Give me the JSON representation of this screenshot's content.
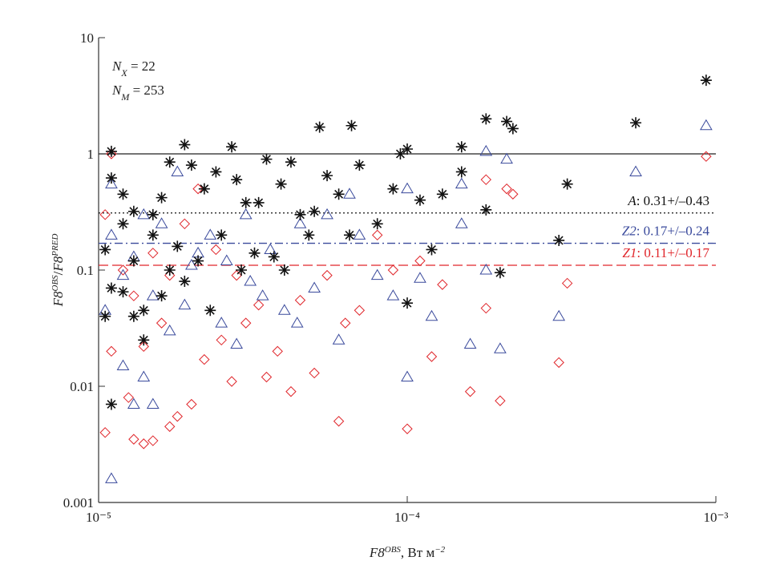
{
  "chart_data": {
    "type": "scatter",
    "xlog": true,
    "ylog": true,
    "xlim": [
      1e-05,
      0.001
    ],
    "ylim": [
      0.001,
      10
    ],
    "xticks": [
      {
        "value": 1e-05,
        "label": "10⁻⁵"
      },
      {
        "value": 0.0001,
        "label": "10⁻⁴"
      },
      {
        "value": 0.001,
        "label": "10⁻³"
      }
    ],
    "yticks": [
      0.001,
      0.01,
      0.1,
      1,
      10
    ],
    "x_label": [
      {
        "text": "F8",
        "style": "italic"
      },
      {
        "text": "OBS",
        "style": "sup"
      },
      {
        "text": ", Вт м"
      },
      {
        "text": "−2",
        "style": "sup"
      }
    ],
    "y_label": [
      {
        "text": "F8",
        "style": "italic"
      },
      {
        "text": "OBS",
        "style": "sup"
      },
      {
        "text": "/"
      },
      {
        "text": "F8",
        "style": "italic"
      },
      {
        "text": "PRED",
        "style": "sup"
      }
    ],
    "annotations": [
      [
        {
          "text": "N",
          "style": "italic"
        },
        {
          "text": "X",
          "style": "sub"
        },
        {
          "text": " = 22"
        }
      ],
      [
        {
          "text": "N",
          "style": "italic"
        },
        {
          "text": "M",
          "style": "sub"
        },
        {
          "text": " = 253"
        }
      ]
    ],
    "reference_line": 1,
    "series": [
      {
        "name": "A",
        "label": ": 0.31+/–0.43",
        "mean": 0.31,
        "color": "#111111",
        "marker": "asterisk",
        "line_style": "dotted",
        "x": [
          1.1e-05,
          1.1e-05,
          1.2e-05,
          1.3e-05,
          1.5e-05,
          1.6e-05,
          1.7e-05,
          1.9e-05,
          2e-05,
          2.2e-05,
          2.4e-05,
          2.7e-05,
          2.8e-05,
          3e-05,
          3.3e-05,
          3.5e-05,
          3.9e-05,
          4.2e-05,
          4.5e-05,
          5.2e-05,
          5.5e-05,
          6e-05,
          6.6e-05,
          7e-05,
          8e-05,
          9e-05,
          9.5e-05,
          0.0001,
          0.00011,
          0.00012,
          0.00013,
          0.00015,
          0.00015,
          0.00018,
          0.00018,
          0.0002,
          0.00021,
          0.00022,
          0.00031,
          0.00033,
          0.00055,
          0.00093,
          1.05e-05,
          1.1e-05,
          1.2e-05,
          1.3e-05,
          1.4e-05,
          1.5e-05,
          1.6e-05,
          1.7e-05,
          1.8e-05,
          1.9e-05,
          2.1e-05,
          2.3e-05,
          2.5e-05,
          2.9e-05,
          3.2e-05,
          3.7e-05,
          4e-05,
          4.8e-05,
          5e-05,
          6.5e-05,
          0.0001,
          1.4e-05,
          1.1e-05,
          1.3e-05,
          1.05e-05,
          1.2e-05
        ],
        "values": [
          1.05,
          0.62,
          0.45,
          0.32,
          0.3,
          0.42,
          0.85,
          1.2,
          0.8,
          0.5,
          0.7,
          1.15,
          0.6,
          0.38,
          0.38,
          0.9,
          0.55,
          0.85,
          0.3,
          1.7,
          0.65,
          0.45,
          1.75,
          0.8,
          0.25,
          0.5,
          1.0,
          1.1,
          0.4,
          0.15,
          0.45,
          1.15,
          0.7,
          2.0,
          0.33,
          0.095,
          1.9,
          1.65,
          0.18,
          0.55,
          1.85,
          4.3,
          0.15,
          0.07,
          0.065,
          0.12,
          0.045,
          0.2,
          0.06,
          0.1,
          0.16,
          0.08,
          0.12,
          0.045,
          0.2,
          0.1,
          0.14,
          0.13,
          0.1,
          0.2,
          0.32,
          0.2,
          0.052,
          0.025,
          0.007,
          0.04,
          0.04,
          0.25
        ]
      },
      {
        "name": "Z2",
        "label": ": 0.17+/–0.24",
        "mean": 0.17,
        "color": "#3a4a9c",
        "marker": "triangle",
        "line_style": "dashdot",
        "x": [
          1.1e-05,
          1.3e-05,
          1.2e-05,
          1.4e-05,
          1.5e-05,
          1.7e-05,
          1.9e-05,
          2e-05,
          2.3e-05,
          2.5e-05,
          2.8e-05,
          3.1e-05,
          3.4e-05,
          3.6e-05,
          4e-05,
          4.4e-05,
          5e-05,
          5.5e-05,
          6e-05,
          6.5e-05,
          7e-05,
          8e-05,
          9e-05,
          0.0001,
          0.0001,
          0.00011,
          0.00012,
          0.00015,
          0.00015,
          0.00016,
          0.00018,
          0.00018,
          0.0002,
          0.00021,
          0.00031,
          0.00055,
          0.00093,
          1.1e-05,
          1.2e-05,
          1.3e-05,
          1.5e-05,
          1.6e-05,
          1.8e-05,
          2.1e-05,
          1.05e-05,
          1.4e-05,
          2.6e-05,
          3e-05,
          4.5e-05,
          1.1e-05
        ],
        "values": [
          0.0016,
          0.007,
          0.015,
          0.012,
          0.007,
          0.03,
          0.05,
          0.11,
          0.2,
          0.035,
          0.023,
          0.08,
          0.06,
          0.15,
          0.045,
          0.035,
          0.07,
          0.3,
          0.025,
          0.45,
          0.2,
          0.09,
          0.06,
          0.012,
          0.5,
          0.085,
          0.04,
          0.55,
          0.25,
          0.023,
          1.05,
          0.1,
          0.021,
          0.9,
          0.04,
          0.7,
          1.75,
          0.2,
          0.09,
          0.13,
          0.06,
          0.25,
          0.7,
          0.14,
          0.045,
          0.3,
          0.12,
          0.3,
          0.25,
          0.55
        ]
      },
      {
        "name": "Z1",
        "label": ": 0.11+/–0.17",
        "mean": 0.11,
        "color": "#e0262b",
        "marker": "diamond",
        "line_style": "dashed",
        "x": [
          1.05e-05,
          1.3e-05,
          1.4e-05,
          1.5e-05,
          1.7e-05,
          1.8e-05,
          2e-05,
          2.2e-05,
          2.5e-05,
          2.7e-05,
          3e-05,
          3.3e-05,
          3.5e-05,
          3.8e-05,
          4.2e-05,
          4.5e-05,
          5e-05,
          5.5e-05,
          6e-05,
          6.3e-05,
          7e-05,
          8e-05,
          9e-05,
          0.0001,
          0.00011,
          0.00012,
          0.00013,
          0.00016,
          0.00018,
          0.00018,
          0.0002,
          0.00021,
          0.00022,
          0.00031,
          0.00033,
          0.00093,
          1.1e-05,
          1.2e-05,
          1.3e-05,
          1.5e-05,
          1.6e-05,
          1.7e-05,
          1.9e-05,
          2.1e-05,
          2.4e-05,
          2.8e-05,
          1.1e-05,
          1.05e-05,
          1.25e-05,
          1.4e-05
        ],
        "values": [
          0.004,
          0.0035,
          0.0032,
          0.0034,
          0.0045,
          0.0055,
          0.007,
          0.017,
          0.025,
          0.011,
          0.035,
          0.05,
          0.012,
          0.02,
          0.009,
          0.055,
          0.013,
          0.09,
          0.005,
          0.035,
          0.045,
          0.2,
          0.1,
          0.0043,
          0.12,
          0.018,
          0.075,
          0.009,
          0.047,
          0.6,
          0.0075,
          0.5,
          0.45,
          0.016,
          0.077,
          0.95,
          0.02,
          0.1,
          0.06,
          0.14,
          0.035,
          0.09,
          0.25,
          0.5,
          0.15,
          0.09,
          1.0,
          0.3,
          0.008,
          0.022
        ]
      }
    ]
  }
}
